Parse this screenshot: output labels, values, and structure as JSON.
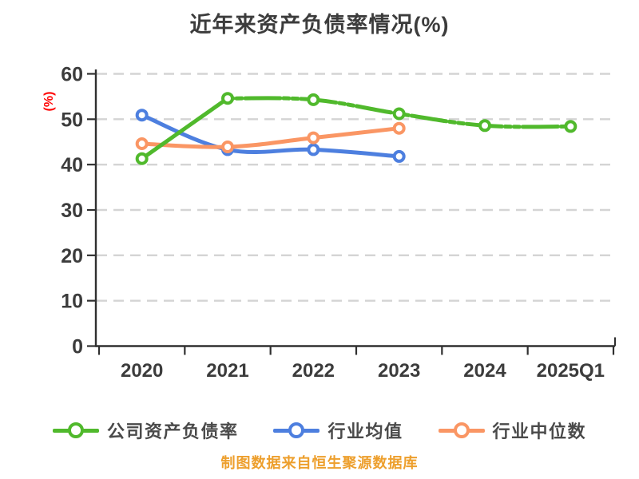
{
  "title": "近年来资产负债率情况(%)",
  "footer": "制图数据来自恒生聚源数据库",
  "colors": {
    "title_text": "#3c3c3c",
    "axis_text": "#3c3c3c",
    "legend_text": "#4a4a4a",
    "footer_text": "#ed9f2d",
    "y_unit_label": "#ff0000",
    "gridline": "#d4d4d4",
    "axis_line": "#303030",
    "series_green": "#50b92c",
    "series_blue": "#4d7fdf",
    "series_orange": "#fa9664",
    "marker_fill": "#ffffff"
  },
  "chart_data": {
    "type": "line",
    "title": "近年来资产负债率情况(%)",
    "ylabel": "(%)",
    "xlabel": "",
    "ylim": [
      0,
      60
    ],
    "yticks": [
      0,
      10,
      20,
      30,
      40,
      50,
      60
    ],
    "grid": "horizontal-dashed",
    "legend_position": "bottom",
    "categories": [
      "2020",
      "2021",
      "2022",
      "2023",
      "2024",
      "2025Q1"
    ],
    "series": [
      {
        "name": "公司资产负债率",
        "color": "#50b92c",
        "marker": "circle",
        "line_style": "solid-then-dashdot",
        "values": [
          41.3,
          54.6,
          54.3,
          51.2,
          48.6,
          48.4
        ]
      },
      {
        "name": "行业均值",
        "color": "#4d7fdf",
        "marker": "circle",
        "line_style": "solid",
        "values": [
          50.9,
          43.3,
          43.3,
          41.8,
          null,
          null
        ]
      },
      {
        "name": "行业中位数",
        "color": "#fa9664",
        "marker": "circle",
        "line_style": "solid",
        "values": [
          44.6,
          43.9,
          45.9,
          48.0,
          null,
          null
        ]
      }
    ]
  }
}
